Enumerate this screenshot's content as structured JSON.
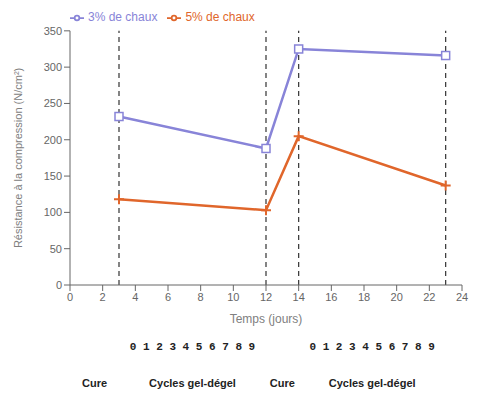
{
  "chart_data": {
    "type": "line",
    "xlabel": "Temps (jours)",
    "ylabel": "Résistance à la compression (N/cm²)",
    "x": [
      3,
      12,
      14,
      23
    ],
    "series": [
      {
        "name": "3% de chaux",
        "values": [
          232,
          188,
          325,
          316
        ],
        "marker": "square"
      },
      {
        "name": "5% de chaux",
        "values": [
          118,
          103,
          205,
          137
        ],
        "marker": "plus"
      }
    ],
    "vlines": [
      3,
      12,
      14,
      23
    ],
    "xlim": [
      0,
      24
    ],
    "ylim": [
      0,
      350
    ],
    "xticks": [
      0,
      2,
      4,
      6,
      8,
      10,
      12,
      14,
      16,
      18,
      20,
      22,
      24
    ],
    "yticks": [
      0,
      50,
      100,
      150,
      200,
      250,
      300,
      350
    ],
    "annotations": [
      "0 1 2 3 4 5 6 7 8 9",
      "0 1 2 3 4 5 6 7 8 9",
      "Cure",
      "Cycles gel-dégel",
      "Cure",
      "Cycles gel-dégel"
    ],
    "grid": false,
    "legend": "upper left"
  }
}
